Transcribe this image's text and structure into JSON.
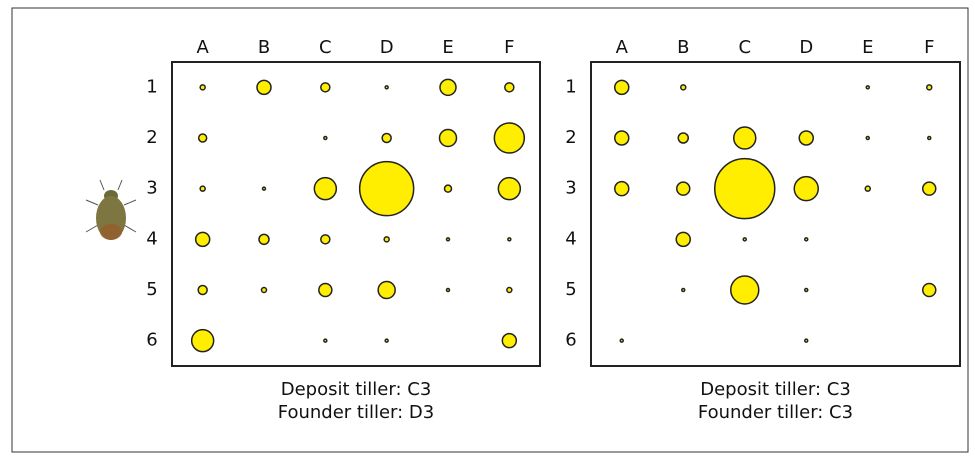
{
  "chart_data": [
    {
      "type": "bubble-grid",
      "color": "#ffee00",
      "columns": [
        "A",
        "B",
        "C",
        "D",
        "E",
        "F"
      ],
      "rows": [
        "1",
        "2",
        "3",
        "4",
        "5",
        "6"
      ],
      "values": [
        [
          5,
          14,
          9,
          3,
          16,
          9
        ],
        [
          8,
          null,
          3,
          9,
          17,
          30
        ],
        [
          5,
          3,
          22,
          54,
          7,
          22
        ],
        [
          14,
          10,
          9,
          5,
          3,
          3
        ],
        [
          9,
          5,
          13,
          17,
          3,
          5
        ],
        [
          22,
          null,
          3,
          3,
          null,
          14
        ]
      ],
      "caption": [
        "Deposit tiller: C3",
        "Founder tiller: D3"
      ]
    },
    {
      "type": "bubble-grid",
      "color": "#ffee00",
      "columns": [
        "A",
        "B",
        "C",
        "D",
        "E",
        "F"
      ],
      "rows": [
        "1",
        "2",
        "3",
        "4",
        "5",
        "6"
      ],
      "values": [
        [
          14,
          5,
          null,
          null,
          3,
          5
        ],
        [
          14,
          10,
          22,
          14,
          3,
          3
        ],
        [
          14,
          13,
          60,
          24,
          5,
          13
        ],
        [
          null,
          14,
          3,
          3,
          null,
          null
        ],
        [
          null,
          3,
          28,
          3,
          null,
          13
        ],
        [
          3,
          null,
          null,
          3,
          null,
          null
        ]
      ],
      "caption": [
        "Deposit tiller: C3",
        "Founder tiller: C3"
      ]
    }
  ]
}
